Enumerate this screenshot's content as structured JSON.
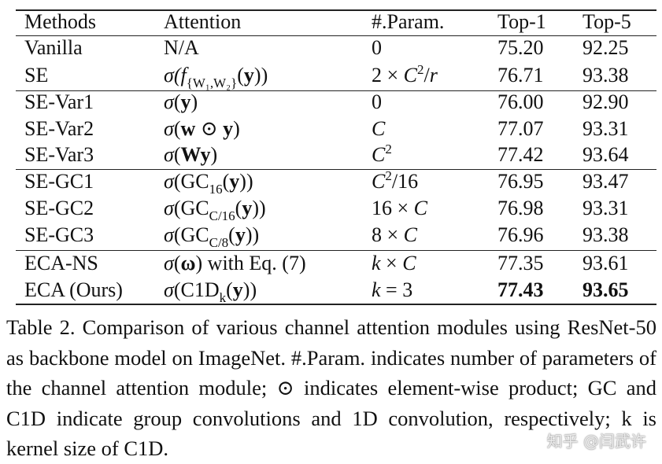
{
  "table": {
    "headers": [
      "Methods",
      "Attention",
      "#.Param.",
      "Top-1",
      "Top-5"
    ],
    "rows": [
      {
        "method": "Vanilla",
        "attention": [
          {
            "t": "N/A",
            "s": "n"
          }
        ],
        "param": [
          {
            "t": "0",
            "s": "n"
          }
        ],
        "top1": "75.20",
        "top5": "92.25",
        "bold": false
      },
      {
        "method": "SE",
        "attention": [
          {
            "t": "σ(",
            "s": "i"
          },
          {
            "t": "f",
            "s": "i"
          },
          {
            "t": "{W₁,W₂}",
            "s": "sub"
          },
          {
            "t": "(",
            "s": "n"
          },
          {
            "t": "y",
            "s": "b"
          },
          {
            "t": "))",
            "s": "n"
          }
        ],
        "param": [
          {
            "t": "2 × ",
            "s": "n"
          },
          {
            "t": "C",
            "s": "i"
          },
          {
            "t": "2",
            "s": "sup"
          },
          {
            "t": "/",
            "s": "n"
          },
          {
            "t": "r",
            "s": "i"
          }
        ],
        "top1": "76.71",
        "top5": "93.38",
        "bold": false
      },
      {
        "method": "SE-Var1",
        "attention": [
          {
            "t": "σ",
            "s": "i"
          },
          {
            "t": "(",
            "s": "n"
          },
          {
            "t": "y",
            "s": "b"
          },
          {
            "t": ")",
            "s": "n"
          }
        ],
        "param": [
          {
            "t": "0",
            "s": "n"
          }
        ],
        "top1": "76.00",
        "top5": "92.90",
        "bold": false
      },
      {
        "method": "SE-Var2",
        "attention": [
          {
            "t": "σ",
            "s": "i"
          },
          {
            "t": "(",
            "s": "n"
          },
          {
            "t": "w",
            "s": "b"
          },
          {
            "t": " ⊙ ",
            "s": "n"
          },
          {
            "t": "y",
            "s": "b"
          },
          {
            "t": ")",
            "s": "n"
          }
        ],
        "param": [
          {
            "t": "C",
            "s": "i"
          }
        ],
        "top1": "77.07",
        "top5": "93.31",
        "bold": false
      },
      {
        "method": "SE-Var3",
        "attention": [
          {
            "t": "σ",
            "s": "i"
          },
          {
            "t": "(",
            "s": "n"
          },
          {
            "t": "Wy",
            "s": "b"
          },
          {
            "t": ")",
            "s": "n"
          }
        ],
        "param": [
          {
            "t": "C",
            "s": "i"
          },
          {
            "t": "2",
            "s": "sup"
          }
        ],
        "top1": "77.42",
        "top5": "93.64",
        "bold": false
      },
      {
        "method": "SE-GC1",
        "attention": [
          {
            "t": "σ",
            "s": "i"
          },
          {
            "t": "(GC",
            "s": "n"
          },
          {
            "t": "16",
            "s": "sub"
          },
          {
            "t": "(",
            "s": "n"
          },
          {
            "t": "y",
            "s": "b"
          },
          {
            "t": "))",
            "s": "n"
          }
        ],
        "param": [
          {
            "t": "C",
            "s": "i"
          },
          {
            "t": "2",
            "s": "sup"
          },
          {
            "t": "/16",
            "s": "n"
          }
        ],
        "top1": "76.95",
        "top5": "93.47",
        "bold": false
      },
      {
        "method": "SE-GC2",
        "attention": [
          {
            "t": "σ",
            "s": "i"
          },
          {
            "t": "(GC",
            "s": "n"
          },
          {
            "t": "C/16",
            "s": "sub"
          },
          {
            "t": "(",
            "s": "n"
          },
          {
            "t": "y",
            "s": "b"
          },
          {
            "t": "))",
            "s": "n"
          }
        ],
        "param": [
          {
            "t": "16 × ",
            "s": "n"
          },
          {
            "t": "C",
            "s": "i"
          }
        ],
        "top1": "76.98",
        "top5": "93.31",
        "bold": false
      },
      {
        "method": "SE-GC3",
        "attention": [
          {
            "t": "σ",
            "s": "i"
          },
          {
            "t": "(GC",
            "s": "n"
          },
          {
            "t": "C/8",
            "s": "sub"
          },
          {
            "t": "(",
            "s": "n"
          },
          {
            "t": "y",
            "s": "b"
          },
          {
            "t": "))",
            "s": "n"
          }
        ],
        "param": [
          {
            "t": "8 × ",
            "s": "n"
          },
          {
            "t": "C",
            "s": "i"
          }
        ],
        "top1": "76.96",
        "top5": "93.38",
        "bold": false
      },
      {
        "method": "ECA-NS",
        "attention": [
          {
            "t": "σ",
            "s": "i"
          },
          {
            "t": "(",
            "s": "n"
          },
          {
            "t": "ω",
            "s": "b"
          },
          {
            "t": ") with Eq. (7)",
            "s": "n"
          }
        ],
        "param": [
          {
            "t": "k",
            "s": "i"
          },
          {
            "t": " × ",
            "s": "n"
          },
          {
            "t": "C",
            "s": "i"
          }
        ],
        "top1": "77.35",
        "top5": "93.61",
        "bold": false
      },
      {
        "method": "ECA (Ours)",
        "attention": [
          {
            "t": "σ",
            "s": "i"
          },
          {
            "t": "(C1D",
            "s": "n"
          },
          {
            "t": "k",
            "s": "sub"
          },
          {
            "t": "(",
            "s": "n"
          },
          {
            "t": "y",
            "s": "b"
          },
          {
            "t": "))",
            "s": "n"
          }
        ],
        "param": [
          {
            "t": "k",
            "s": "i"
          },
          {
            "t": " = 3",
            "s": "n"
          }
        ],
        "top1": "77.43",
        "top5": "93.65",
        "bold": true
      }
    ]
  },
  "caption": "Table 2. Comparison of various channel attention modules using ResNet-50 as backbone model on ImageNet. #.Param. indicates number of parameters of the channel attention module; ⊙ indicates element-wise product; GC and C1D indicate group convolutions and 1D convolution, respectively; k is kernel size of C1D.",
  "watermark": "知乎 @闫武许"
}
